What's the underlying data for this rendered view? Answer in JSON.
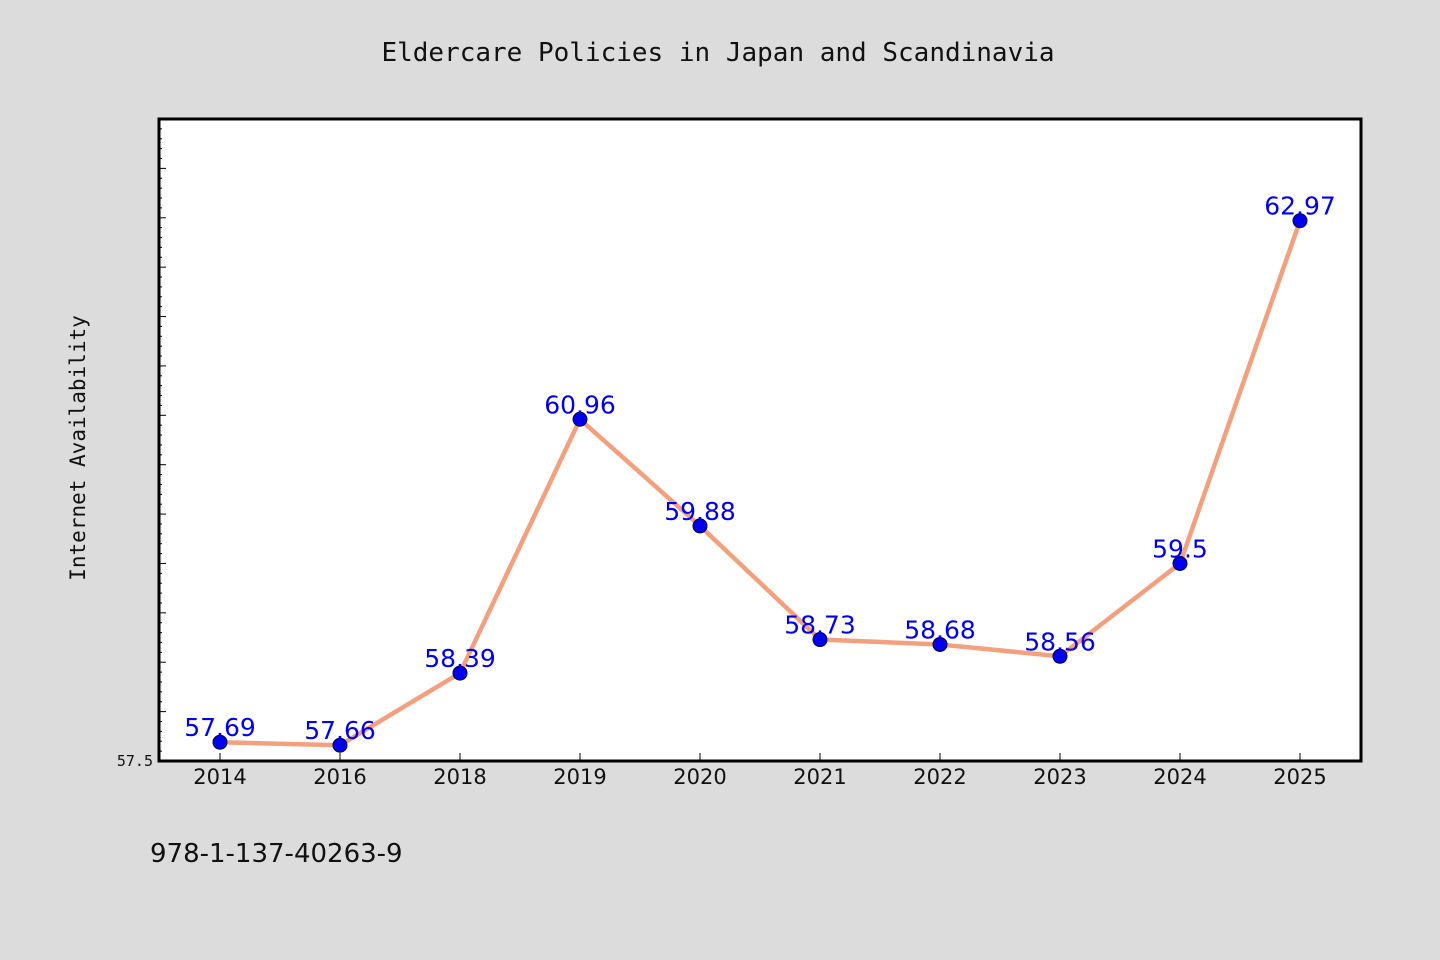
{
  "chart_data": {
    "type": "line",
    "title": "Eldercare Policies in Japan and Scandinavia",
    "xlabel": "",
    "ylabel": "Internet Availability",
    "categories": [
      "2014",
      "2016",
      "2018",
      "2019",
      "2020",
      "2021",
      "2022",
      "2023",
      "2024",
      "2025"
    ],
    "series": [
      {
        "values": [
          57.69,
          57.66,
          58.39,
          60.96,
          59.88,
          58.73,
          58.68,
          58.56,
          59.5,
          62.97
        ],
        "data_labels": [
          "57.69",
          "57.66",
          "58.39",
          "60.96",
          "59.88",
          "58.73",
          "58.68",
          "58.56",
          "59.5",
          "62.97"
        ]
      }
    ],
    "ylim": [
      57.5,
      64.0
    ],
    "yticks_labeled": [
      "57.5"
    ],
    "grid": false,
    "legend": "none",
    "colors": {
      "line": "#f4a07e",
      "marker": "#0000ee",
      "data_label": "#0000ee",
      "background": "#dcdcdc",
      "plot_background": "#ffffff"
    }
  },
  "footer": {
    "isbn": "978-1-137-40263-9"
  }
}
